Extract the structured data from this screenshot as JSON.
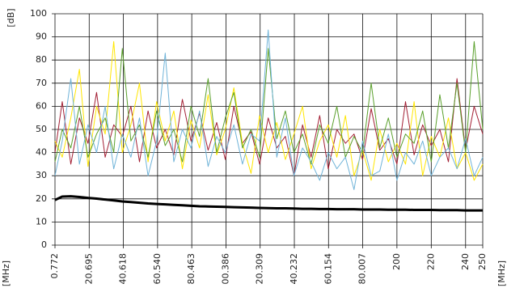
{
  "chart_data": {
    "type": "line",
    "y_label": "[dB]",
    "x_label_left": "[MHz]",
    "x_label_right": "[MHz]",
    "grid": true,
    "xlim": [
      0.772,
      250
    ],
    "xticks": [
      0.772,
      20.695,
      40.618,
      {
        "value": 60.54,
        "label": "60.540"
      },
      80.463,
      {
        "value": 100.386,
        "label": "00.386"
      },
      {
        "value": 120.309,
        "label": "20.309"
      },
      {
        "value": 140.232,
        "label": "40.232"
      },
      {
        "value": 160.154,
        "label": "60.154"
      },
      {
        "value": 180.007,
        "label": "80.007"
      },
      200,
      220,
      240,
      250
    ],
    "ylim": [
      0,
      100
    ],
    "yticks": [
      0,
      10,
      20,
      30,
      40,
      50,
      60,
      70,
      80,
      90,
      100
    ],
    "x": [
      0.772,
      5,
      10,
      15,
      20,
      25,
      30,
      35,
      40,
      45,
      50,
      55,
      60,
      65,
      70,
      75,
      80,
      85,
      90,
      95,
      100,
      105,
      110,
      115,
      120,
      125,
      130,
      135,
      140,
      145,
      150,
      155,
      160,
      165,
      170,
      175,
      180,
      185,
      190,
      195,
      200,
      205,
      210,
      215,
      220,
      225,
      230,
      235,
      240,
      245,
      250
    ],
    "series": [
      {
        "color": "#a31f34",
        "width": 1,
        "values": [
          40,
          62,
          35,
          55,
          44,
          66,
          38,
          52,
          47,
          60,
          36,
          58,
          42,
          50,
          39,
          63,
          45,
          57,
          41,
          53,
          37,
          60,
          44,
          49,
          35,
          55,
          42,
          47,
          30,
          52,
          38,
          56,
          33,
          50,
          44,
          48,
          37,
          59,
          41,
          46,
          35,
          62,
          39,
          52,
          43,
          50,
          36,
          72,
          41,
          60,
          48
        ]
      },
      {
        "color": "#ffe600",
        "width": 1,
        "values": [
          45,
          38,
          55,
          76,
          34,
          60,
          48,
          88,
          40,
          52,
          70,
          36,
          62,
          45,
          58,
          33,
          54,
          42,
          65,
          39,
          50,
          68,
          44,
          31,
          56,
          40,
          53,
          37,
          48,
          60,
          33,
          45,
          52,
          38,
          56,
          30,
          41,
          28,
          50,
          36,
          44,
          35,
          62,
          30,
          47,
          38,
          55,
          33,
          40,
          28,
          35
        ]
      },
      {
        "color": "#5aa02c",
        "width": 1,
        "values": [
          36,
          50,
          42,
          60,
          38,
          48,
          55,
          40,
          85,
          45,
          52,
          38,
          58,
          43,
          50,
          36,
          60,
          47,
          72,
          40,
          55,
          66,
          42,
          50,
          38,
          85,
          46,
          58,
          40,
          48,
          35,
          52,
          44,
          60,
          38,
          47,
          40,
          70,
          42,
          55,
          38,
          48,
          44,
          58,
          36,
          65,
          42,
          70,
          40,
          88,
          50
        ]
      },
      {
        "color": "#6fb3d8",
        "width": 1,
        "values": [
          30,
          45,
          72,
          35,
          52,
          40,
          60,
          33,
          48,
          38,
          55,
          30,
          45,
          83,
          36,
          50,
          42,
          58,
          34,
          47,
          40,
          52,
          35,
          48,
          45,
          93,
          38,
          55,
          30,
          42,
          36,
          28,
          40,
          33,
          38,
          24,
          45,
          30,
          32,
          48,
          28,
          40,
          35,
          45,
          30,
          38,
          42,
          33,
          46,
          30,
          38
        ]
      },
      {
        "color": "#000000",
        "width": 3,
        "values": [
          19.5,
          21,
          21.1,
          20.8,
          20.4,
          20.1,
          19.7,
          19.3,
          18.9,
          18.6,
          18.3,
          18.0,
          17.8,
          17.6,
          17.4,
          17.2,
          17.0,
          16.8,
          16.7,
          16.6,
          16.5,
          16.4,
          16.3,
          16.2,
          16.1,
          16.0,
          15.9,
          15.9,
          15.8,
          15.7,
          15.7,
          15.6,
          15.6,
          15.5,
          15.5,
          15.5,
          15.4,
          15.4,
          15.4,
          15.3,
          15.3,
          15.3,
          15.2,
          15.2,
          15.2,
          15.1,
          15.1,
          15.1,
          15.0,
          15.0,
          15.0
        ]
      }
    ]
  }
}
